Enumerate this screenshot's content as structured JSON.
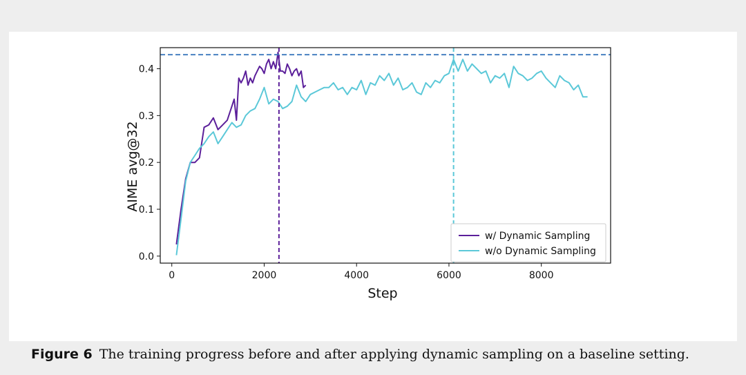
{
  "chart_data": {
    "type": "line",
    "xlabel": "Step",
    "ylabel": "AIME avg@32",
    "xlim": [
      -250,
      9500
    ],
    "ylim": [
      -0.015,
      0.445
    ],
    "xticks": [
      0,
      2000,
      4000,
      6000,
      8000
    ],
    "xtick_labels": [
      "0",
      "2000",
      "4000",
      "6000",
      "8000"
    ],
    "yticks": [
      0.0,
      0.1,
      0.2,
      0.3,
      0.4
    ],
    "ytick_labels": [
      "0.0",
      "0.1",
      "0.2",
      "0.3",
      "0.4"
    ],
    "grid": false,
    "legend_position": "lower-right",
    "series": [
      {
        "name": "w/ Dynamic Sampling",
        "color": "#5b1f9a",
        "x": [
          100,
          200,
          300,
          400,
          500,
          600,
          700,
          800,
          900,
          1000,
          1100,
          1200,
          1300,
          1350,
          1400,
          1450,
          1500,
          1550,
          1600,
          1650,
          1700,
          1750,
          1800,
          1850,
          1900,
          1950,
          2000,
          2050,
          2100,
          2150,
          2200,
          2250,
          2300,
          2350,
          2400,
          2450,
          2500,
          2550,
          2600,
          2650,
          2700,
          2750,
          2800,
          2850,
          2900
        ],
        "y": [
          0.025,
          0.1,
          0.165,
          0.2,
          0.2,
          0.21,
          0.275,
          0.28,
          0.295,
          0.27,
          0.28,
          0.29,
          0.32,
          0.335,
          0.29,
          0.38,
          0.37,
          0.38,
          0.395,
          0.365,
          0.38,
          0.37,
          0.385,
          0.395,
          0.405,
          0.4,
          0.39,
          0.41,
          0.42,
          0.4,
          0.415,
          0.4,
          0.435,
          0.395,
          0.395,
          0.39,
          0.41,
          0.4,
          0.385,
          0.395,
          0.4,
          0.385,
          0.395,
          0.36,
          0.365
        ],
        "vline": 2320
      },
      {
        "name": "w/o Dynamic Sampling",
        "color": "#5bc8d8",
        "x": [
          100,
          200,
          300,
          400,
          500,
          600,
          700,
          800,
          900,
          1000,
          1100,
          1200,
          1300,
          1400,
          1500,
          1600,
          1700,
          1800,
          1900,
          2000,
          2100,
          2200,
          2300,
          2400,
          2500,
          2600,
          2700,
          2800,
          2900,
          3000,
          3100,
          3200,
          3300,
          3400,
          3500,
          3600,
          3700,
          3800,
          3900,
          4000,
          4100,
          4200,
          4300,
          4400,
          4500,
          4600,
          4700,
          4800,
          4900,
          5000,
          5100,
          5200,
          5300,
          5400,
          5500,
          5600,
          5700,
          5800,
          5900,
          6000,
          6100,
          6200,
          6300,
          6400,
          6500,
          6600,
          6700,
          6800,
          6900,
          7000,
          7100,
          7200,
          7300,
          7400,
          7500,
          7600,
          7700,
          7800,
          7900,
          8000,
          8100,
          8200,
          8300,
          8400,
          8500,
          8600,
          8700,
          8800,
          8900,
          9000
        ],
        "y": [
          0.002,
          0.08,
          0.16,
          0.2,
          0.215,
          0.23,
          0.24,
          0.255,
          0.265,
          0.24,
          0.255,
          0.27,
          0.285,
          0.275,
          0.28,
          0.3,
          0.31,
          0.315,
          0.335,
          0.36,
          0.325,
          0.335,
          0.33,
          0.315,
          0.32,
          0.33,
          0.365,
          0.34,
          0.33,
          0.345,
          0.35,
          0.355,
          0.36,
          0.36,
          0.37,
          0.355,
          0.36,
          0.345,
          0.36,
          0.355,
          0.375,
          0.345,
          0.37,
          0.365,
          0.385,
          0.375,
          0.39,
          0.365,
          0.38,
          0.355,
          0.36,
          0.37,
          0.35,
          0.345,
          0.37,
          0.36,
          0.375,
          0.37,
          0.385,
          0.39,
          0.42,
          0.395,
          0.42,
          0.395,
          0.41,
          0.4,
          0.39,
          0.395,
          0.37,
          0.385,
          0.38,
          0.39,
          0.36,
          0.405,
          0.39,
          0.385,
          0.375,
          0.38,
          0.39,
          0.395,
          0.38,
          0.37,
          0.36,
          0.385,
          0.375,
          0.37,
          0.355,
          0.365,
          0.34,
          0.34
        ],
        "vline": 6100
      }
    ],
    "hline": {
      "y": 0.43,
      "color": "#3b78bd"
    }
  },
  "caption": {
    "label": "Figure 6",
    "text": "The training progress before and after applying dynamic sampling on a baseline setting."
  }
}
